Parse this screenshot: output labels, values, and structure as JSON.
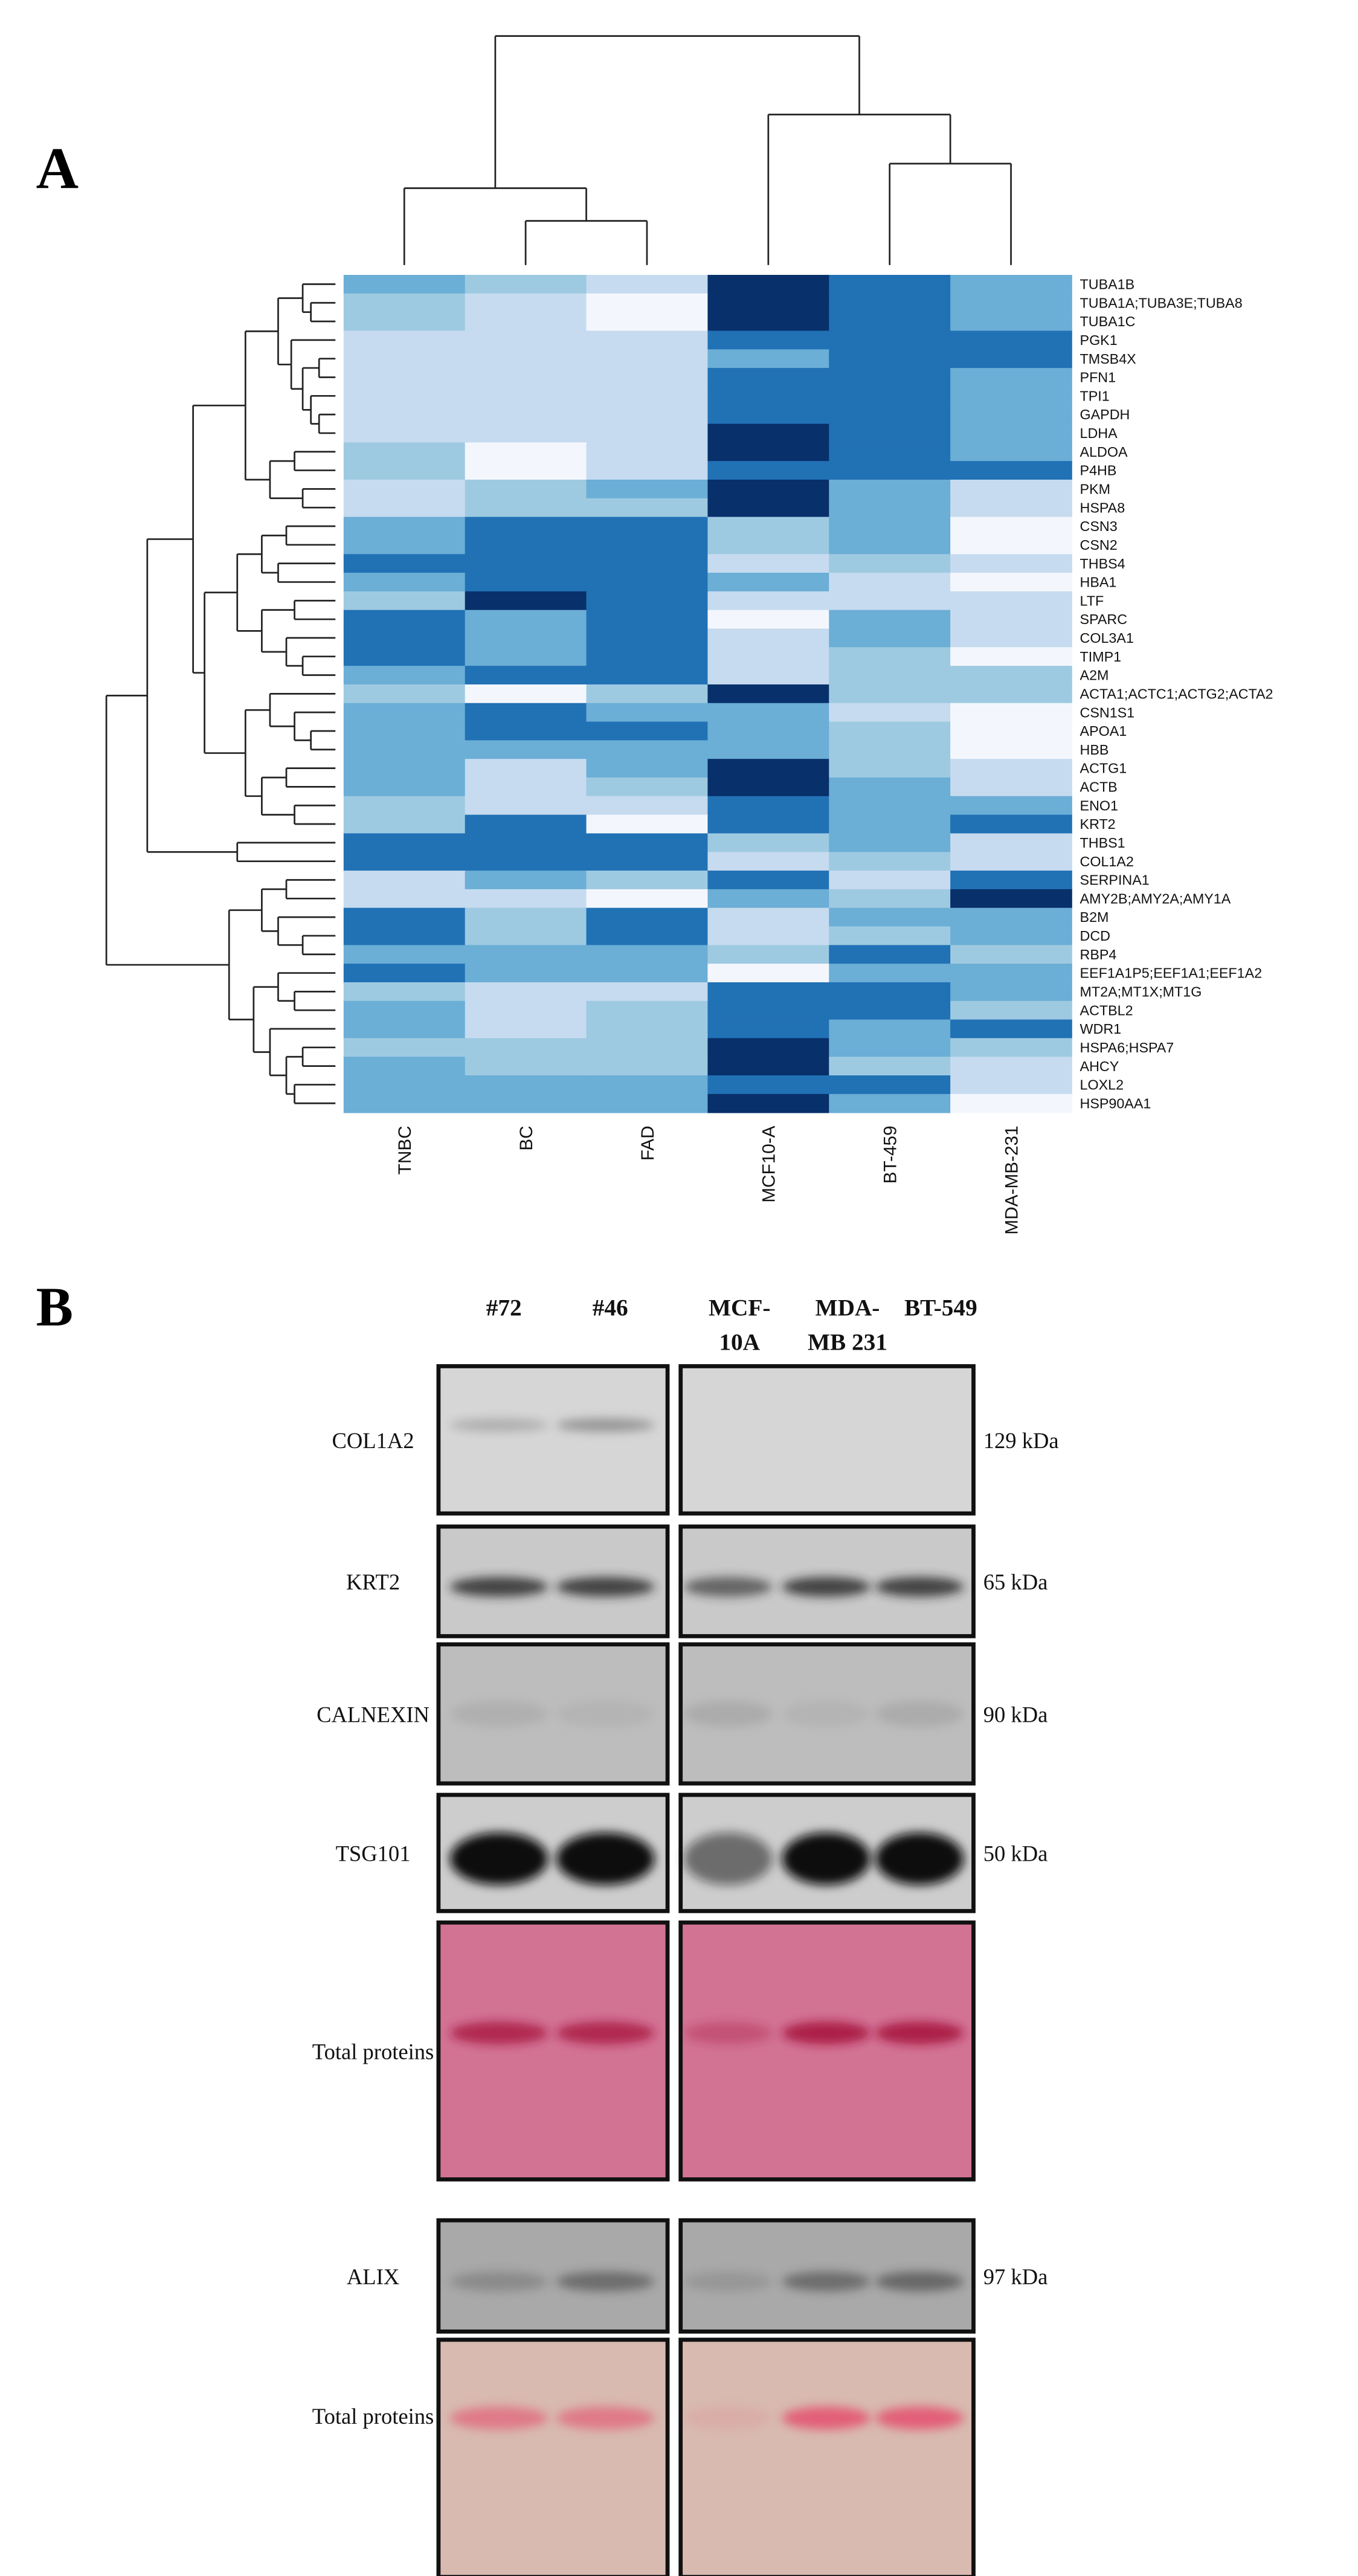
{
  "chart_data": {
    "type": "heatmap",
    "panel_label": "A",
    "columns": [
      "TNBC",
      "BC",
      "FAD",
      "MCF10-A",
      "BT-459",
      "MDA-MB-231"
    ],
    "rows": [
      "TUBA1B",
      "TUBA1A;TUBA3E;TUBA8",
      "TUBA1C",
      "PGK1",
      "TMSB4X",
      "PFN1",
      "TPI1",
      "GAPDH",
      "LDHA",
      "ALDOA",
      "P4HB",
      "PKM",
      "HSPA8",
      "CSN3",
      "CSN2",
      "THBS4",
      "HBA1",
      "LTF",
      "SPARC",
      "COL3A1",
      "TIMP1",
      "A2M",
      "ACTA1;ACTC1;ACTG2;ACTA2",
      "CSN1S1",
      "APOA1",
      "HBB",
      "ACTG1",
      "ACTB",
      "ENO1",
      "KRT2",
      "THBS1",
      "COL1A2",
      "SERPINA1",
      "AMY2B;AMY2A;AMY1A",
      "B2M",
      "DCD",
      "RBP4",
      "EEF1A1P5;EEF1A1;EEF1A2",
      "MT2A;MT1X;MT1G",
      "ACTBL2",
      "WDR1",
      "HSPA6;HSPA7",
      "AHCY",
      "LOXL2",
      "HSP90AA1"
    ],
    "values": [
      [
        3,
        2,
        1,
        5,
        4,
        3
      ],
      [
        2,
        1,
        0,
        5,
        4,
        3
      ],
      [
        2,
        1,
        0,
        5,
        4,
        3
      ],
      [
        1,
        1,
        1,
        4,
        4,
        4
      ],
      [
        1,
        1,
        1,
        3,
        4,
        4
      ],
      [
        1,
        1,
        1,
        4,
        4,
        3
      ],
      [
        1,
        1,
        1,
        4,
        4,
        3
      ],
      [
        1,
        1,
        1,
        4,
        4,
        3
      ],
      [
        1,
        1,
        1,
        5,
        4,
        3
      ],
      [
        2,
        0,
        1,
        5,
        4,
        3
      ],
      [
        2,
        0,
        1,
        4,
        4,
        4
      ],
      [
        1,
        2,
        3,
        5,
        3,
        1
      ],
      [
        1,
        2,
        2,
        5,
        3,
        1
      ],
      [
        3,
        4,
        4,
        2,
        3,
        0
      ],
      [
        3,
        4,
        4,
        2,
        3,
        0
      ],
      [
        4,
        4,
        4,
        1,
        2,
        1
      ],
      [
        3,
        4,
        4,
        3,
        1,
        0
      ],
      [
        2,
        5,
        4,
        1,
        1,
        1
      ],
      [
        4,
        3,
        4,
        0,
        3,
        1
      ],
      [
        4,
        3,
        4,
        1,
        3,
        1
      ],
      [
        4,
        3,
        4,
        1,
        2,
        0
      ],
      [
        3,
        4,
        4,
        1,
        2,
        2
      ],
      [
        2,
        0,
        2,
        5,
        2,
        2
      ],
      [
        3,
        4,
        3,
        3,
        1,
        0
      ],
      [
        3,
        4,
        4,
        3,
        2,
        0
      ],
      [
        3,
        3,
        3,
        3,
        2,
        0
      ],
      [
        3,
        1,
        3,
        5,
        2,
        1
      ],
      [
        3,
        1,
        2,
        5,
        3,
        1
      ],
      [
        2,
        1,
        1,
        4,
        3,
        3
      ],
      [
        2,
        4,
        0,
        4,
        3,
        4
      ],
      [
        4,
        4,
        4,
        2,
        3,
        1
      ],
      [
        4,
        4,
        4,
        1,
        2,
        1
      ],
      [
        1,
        3,
        2,
        4,
        1,
        4
      ],
      [
        1,
        1,
        0,
        3,
        2,
        5
      ],
      [
        4,
        2,
        4,
        1,
        3,
        3
      ],
      [
        4,
        2,
        4,
        1,
        2,
        3
      ],
      [
        3,
        3,
        3,
        2,
        4,
        2
      ],
      [
        4,
        3,
        3,
        0,
        3,
        3
      ],
      [
        2,
        1,
        1,
        4,
        4,
        3
      ],
      [
        3,
        1,
        2,
        4,
        4,
        2
      ],
      [
        3,
        1,
        2,
        4,
        3,
        4
      ],
      [
        2,
        2,
        2,
        5,
        3,
        2
      ],
      [
        3,
        2,
        2,
        5,
        2,
        1
      ],
      [
        3,
        3,
        3,
        4,
        4,
        1
      ],
      [
        3,
        3,
        3,
        5,
        3,
        0
      ]
    ],
    "palette": [
      "#f3f7fd",
      "#c6dbef",
      "#9ecae1",
      "#6baed6",
      "#2171b5",
      "#08306b"
    ]
  },
  "panel_b": {
    "panel_label": "B",
    "lanes": [
      [
        "#72"
      ],
      [
        "#46"
      ],
      [
        "MCF-",
        "10A"
      ],
      [
        "MDA-",
        "MB 231"
      ],
      [
        "BT-549"
      ]
    ],
    "blots": [
      {
        "label": "COL1A2",
        "size": "129 kDa"
      },
      {
        "label": "KRT2",
        "size": "65 kDa"
      },
      {
        "label": "CALNEXIN",
        "size": "90 kDa"
      },
      {
        "label": "TSG101",
        "size": "50 kDa"
      },
      {
        "label": "Total proteins"
      },
      {
        "label": "ALIX",
        "size": "97 kDa"
      },
      {
        "label": "Total proteins"
      }
    ]
  }
}
